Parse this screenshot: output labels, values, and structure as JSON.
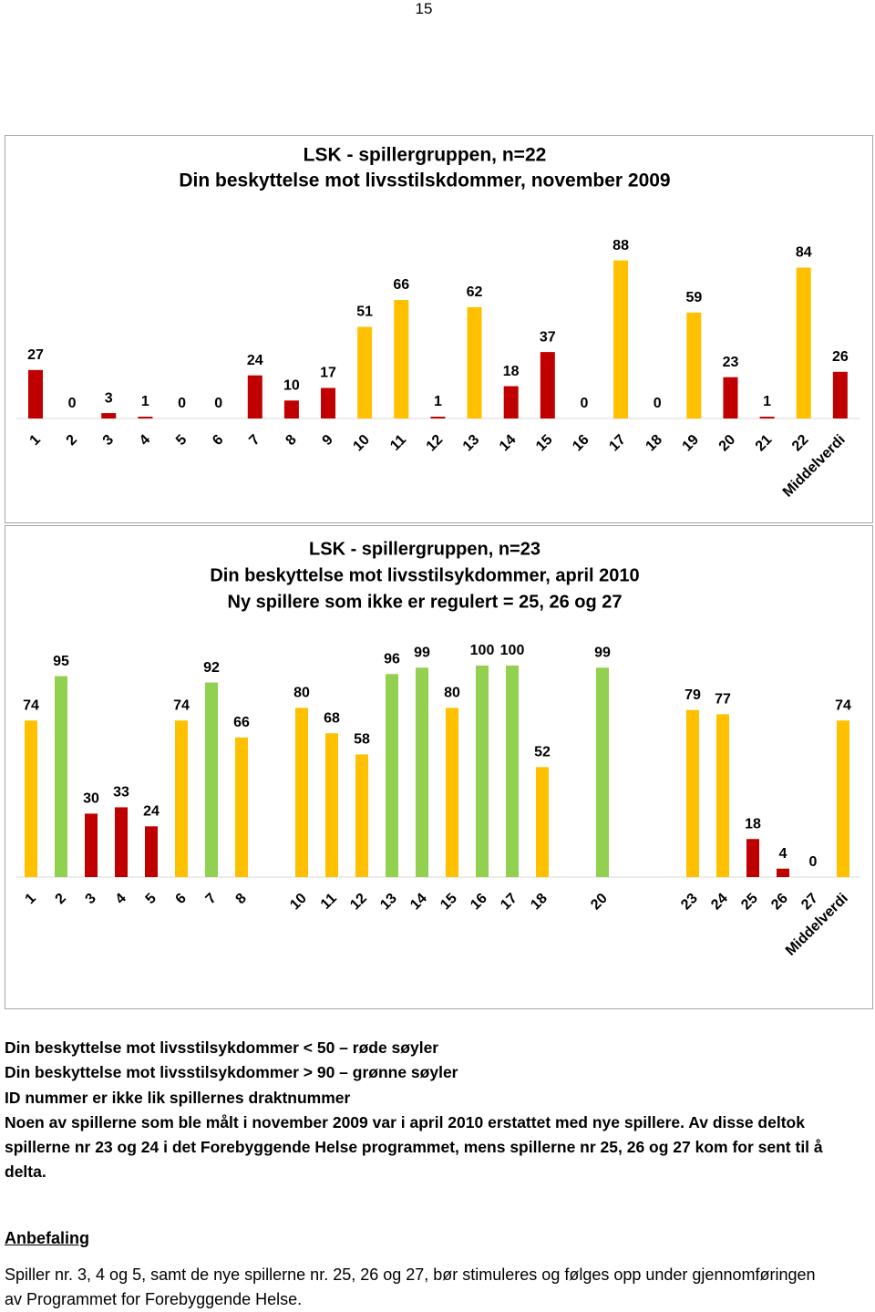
{
  "page_number": "15",
  "chart_data": [
    {
      "type": "bar",
      "title": [
        "LSK - spillergruppen, n=22",
        "Din beskyttelse mot livsstilskdommer,  november 2009"
      ],
      "categories": [
        "1",
        "2",
        "3",
        "4",
        "5",
        "6",
        "7",
        "8",
        "9",
        "10",
        "11",
        "12",
        "13",
        "14",
        "15",
        "16",
        "17",
        "18",
        "19",
        "20",
        "21",
        "22",
        "Middelverdi"
      ],
      "values": [
        27,
        0,
        3,
        1,
        0,
        0,
        24,
        10,
        17,
        51,
        66,
        1,
        62,
        18,
        37,
        0,
        88,
        0,
        59,
        23,
        1,
        84,
        26
      ],
      "colors": [
        "#c00000",
        "#c00000",
        "#c00000",
        "#c00000",
        "#c00000",
        "#c00000",
        "#c00000",
        "#c00000",
        "#c00000",
        "#ffc000",
        "#ffc000",
        "#c00000",
        "#ffc000",
        "#c00000",
        "#c00000",
        "#c00000",
        "#ffc000",
        "#c00000",
        "#ffc000",
        "#c00000",
        "#c00000",
        "#ffc000",
        "#c00000"
      ]
    },
    {
      "type": "bar",
      "title": [
        "LSK - spillergruppen, n=23",
        "Din beskyttelse mot livsstilsykdommer, april 2010",
        "Ny spillere som ikke er regulert = 25, 26 og 27"
      ],
      "categories": [
        "1",
        "2",
        "3",
        "4",
        "5",
        "6",
        "7",
        "8",
        null,
        "10",
        "11",
        "12",
        "13",
        "14",
        "15",
        "16",
        "17",
        "18",
        null,
        "20",
        null,
        null,
        "23",
        "24",
        "25",
        "26",
        "27",
        "Middelverdi"
      ],
      "values": [
        74,
        95,
        30,
        33,
        24,
        74,
        92,
        66,
        null,
        80,
        68,
        58,
        96,
        99,
        80,
        100,
        100,
        52,
        null,
        99,
        null,
        null,
        79,
        77,
        18,
        4,
        0,
        74
      ],
      "colors": [
        "#ffc000",
        "#92d050",
        "#c00000",
        "#c00000",
        "#c00000",
        "#ffc000",
        "#92d050",
        "#ffc000",
        null,
        "#ffc000",
        "#ffc000",
        "#ffc000",
        "#92d050",
        "#92d050",
        "#ffc000",
        "#92d050",
        "#92d050",
        "#ffc000",
        null,
        "#92d050",
        null,
        null,
        "#ffc000",
        "#ffc000",
        "#c00000",
        "#c00000",
        "#c00000",
        "#ffc000"
      ]
    }
  ],
  "notes": [
    "Din beskyttelse mot livsstilsykdommer < 50 – røde søyler",
    "Din beskyttelse mot livsstilsykdommer > 90 – grønne søyler",
    "ID nummer er ikke lik spillernes draktnummer",
    "Noen av spillerne som ble målt i november 2009 var i april 2010 erstattet med nye spillere. Av disse deltok spillerne nr 23 og 24 i det Forebyggende Helse programmet, mens spillerne nr 25, 26 og 27 kom for sent til å delta."
  ],
  "recommendation": {
    "heading": "Anbefaling",
    "text": "Spiller nr. 3, 4 og 5, samt de nye spillerne nr. 25, 26 og 27, bør stimuleres og følges opp under gjennomføringen av Programmet for Forebyggende Helse."
  }
}
